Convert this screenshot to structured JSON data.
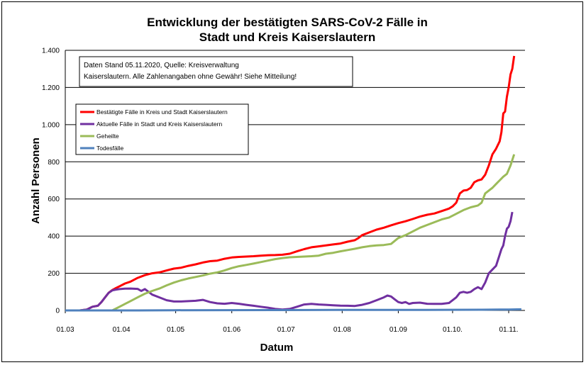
{
  "chart_data": {
    "type": "line",
    "title_line1": "Entwicklung der bestätigten SARS-CoV-2 Fälle in",
    "title_line2": "Stadt und Kreis Kaiserslautern",
    "xlabel": "Datum",
    "ylabel": "Anzahl Personen",
    "ylim": [
      0,
      1400
    ],
    "y_ticks": [
      0,
      200,
      400,
      600,
      800,
      1000,
      1200,
      1400
    ],
    "y_tick_labels": [
      "0",
      "200",
      "400",
      "600",
      "800",
      "1.000",
      "1.200",
      "1.400"
    ],
    "x_range_days": [
      0,
      254
    ],
    "x_ticks": [
      {
        "day": 0,
        "label": "01.03"
      },
      {
        "day": 31,
        "label": "01.04"
      },
      {
        "day": 61,
        "label": "01.05"
      },
      {
        "day": 92,
        "label": "01.06"
      },
      {
        "day": 122,
        "label": "01.07"
      },
      {
        "day": 153,
        "label": "01.08"
      },
      {
        "day": 184,
        "label": "01.09"
      },
      {
        "day": 214,
        "label": "01.10."
      },
      {
        "day": 245,
        "label": "01.11."
      }
    ],
    "grid": true,
    "note_line1": "Daten Stand 05.11.2020, Quelle: Kreisverwaltung",
    "note_line2": "Kaiserslautern. Alle Zahlenangaben ohne Gewähr! Siehe Mitteilung!",
    "legend_position": "top-left",
    "series": [
      {
        "name": "Bestätigte Fälle in Kreis und Stadt Kaiserslautern",
        "color": "#ff0000",
        "points": [
          [
            0,
            0
          ],
          [
            8,
            0
          ],
          [
            12,
            5
          ],
          [
            15,
            20
          ],
          [
            18,
            25
          ],
          [
            20,
            45
          ],
          [
            22,
            70
          ],
          [
            24,
            95
          ],
          [
            26,
            110
          ],
          [
            28,
            120
          ],
          [
            30,
            130
          ],
          [
            33,
            145
          ],
          [
            36,
            155
          ],
          [
            40,
            175
          ],
          [
            44,
            190
          ],
          [
            48,
            200
          ],
          [
            52,
            205
          ],
          [
            56,
            215
          ],
          [
            60,
            225
          ],
          [
            64,
            230
          ],
          [
            68,
            240
          ],
          [
            72,
            248
          ],
          [
            76,
            258
          ],
          [
            80,
            265
          ],
          [
            84,
            268
          ],
          [
            88,
            278
          ],
          [
            92,
            285
          ],
          [
            96,
            288
          ],
          [
            100,
            290
          ],
          [
            104,
            292
          ],
          [
            108,
            295
          ],
          [
            112,
            297
          ],
          [
            116,
            298
          ],
          [
            120,
            300
          ],
          [
            124,
            305
          ],
          [
            128,
            318
          ],
          [
            132,
            330
          ],
          [
            136,
            340
          ],
          [
            140,
            345
          ],
          [
            144,
            350
          ],
          [
            148,
            355
          ],
          [
            152,
            360
          ],
          [
            156,
            370
          ],
          [
            160,
            378
          ],
          [
            162,
            390
          ],
          [
            164,
            405
          ],
          [
            168,
            420
          ],
          [
            172,
            435
          ],
          [
            176,
            445
          ],
          [
            180,
            458
          ],
          [
            184,
            470
          ],
          [
            188,
            480
          ],
          [
            192,
            492
          ],
          [
            196,
            505
          ],
          [
            200,
            515
          ],
          [
            204,
            522
          ],
          [
            208,
            535
          ],
          [
            212,
            548
          ],
          [
            214,
            560
          ],
          [
            216,
            580
          ],
          [
            218,
            630
          ],
          [
            220,
            645
          ],
          [
            222,
            648
          ],
          [
            224,
            660
          ],
          [
            226,
            690
          ],
          [
            228,
            700
          ],
          [
            230,
            705
          ],
          [
            232,
            730
          ],
          [
            234,
            780
          ],
          [
            236,
            840
          ],
          [
            238,
            870
          ],
          [
            240,
            910
          ],
          [
            241,
            960
          ],
          [
            242,
            1060
          ],
          [
            243,
            1070
          ],
          [
            244,
            1150
          ],
          [
            245,
            1200
          ],
          [
            246,
            1270
          ],
          [
            247,
            1300
          ],
          [
            248,
            1370
          ]
        ]
      },
      {
        "name": "Aktuelle Fälle in Stadt und Kreis Kaiserslautern",
        "color": "#7030a0",
        "points": [
          [
            0,
            0
          ],
          [
            8,
            0
          ],
          [
            12,
            5
          ],
          [
            15,
            20
          ],
          [
            18,
            25
          ],
          [
            20,
            45
          ],
          [
            22,
            70
          ],
          [
            24,
            95
          ],
          [
            26,
            108
          ],
          [
            28,
            112
          ],
          [
            30,
            115
          ],
          [
            33,
            117
          ],
          [
            36,
            118
          ],
          [
            40,
            116
          ],
          [
            42,
            105
          ],
          [
            44,
            115
          ],
          [
            46,
            100
          ],
          [
            48,
            85
          ],
          [
            52,
            70
          ],
          [
            56,
            55
          ],
          [
            60,
            48
          ],
          [
            64,
            48
          ],
          [
            68,
            50
          ],
          [
            72,
            52
          ],
          [
            76,
            57
          ],
          [
            80,
            45
          ],
          [
            84,
            38
          ],
          [
            88,
            36
          ],
          [
            92,
            40
          ],
          [
            96,
            36
          ],
          [
            100,
            30
          ],
          [
            104,
            25
          ],
          [
            108,
            20
          ],
          [
            112,
            15
          ],
          [
            116,
            8
          ],
          [
            120,
            5
          ],
          [
            124,
            8
          ],
          [
            128,
            20
          ],
          [
            132,
            32
          ],
          [
            136,
            35
          ],
          [
            140,
            32
          ],
          [
            144,
            30
          ],
          [
            148,
            28
          ],
          [
            152,
            26
          ],
          [
            156,
            25
          ],
          [
            160,
            24
          ],
          [
            164,
            30
          ],
          [
            168,
            40
          ],
          [
            172,
            55
          ],
          [
            176,
            70
          ],
          [
            178,
            80
          ],
          [
            180,
            75
          ],
          [
            182,
            60
          ],
          [
            184,
            45
          ],
          [
            186,
            40
          ],
          [
            188,
            45
          ],
          [
            190,
            35
          ],
          [
            192,
            40
          ],
          [
            196,
            42
          ],
          [
            200,
            36
          ],
          [
            204,
            35
          ],
          [
            208,
            35
          ],
          [
            212,
            40
          ],
          [
            214,
            55
          ],
          [
            216,
            70
          ],
          [
            218,
            95
          ],
          [
            220,
            100
          ],
          [
            222,
            95
          ],
          [
            224,
            100
          ],
          [
            226,
            115
          ],
          [
            228,
            125
          ],
          [
            230,
            115
          ],
          [
            232,
            150
          ],
          [
            234,
            200
          ],
          [
            236,
            220
          ],
          [
            238,
            240
          ],
          [
            240,
            300
          ],
          [
            241,
            330
          ],
          [
            242,
            350
          ],
          [
            243,
            400
          ],
          [
            244,
            440
          ],
          [
            245,
            450
          ],
          [
            246,
            480
          ],
          [
            247,
            530
          ]
        ]
      },
      {
        "name": "Geheilte",
        "color": "#9bbb59",
        "points": [
          [
            18,
            0
          ],
          [
            26,
            0
          ],
          [
            30,
            20
          ],
          [
            33,
            35
          ],
          [
            36,
            50
          ],
          [
            40,
            70
          ],
          [
            44,
            90
          ],
          [
            48,
            105
          ],
          [
            52,
            118
          ],
          [
            56,
            135
          ],
          [
            60,
            150
          ],
          [
            64,
            162
          ],
          [
            68,
            172
          ],
          [
            72,
            180
          ],
          [
            76,
            188
          ],
          [
            80,
            198
          ],
          [
            84,
            205
          ],
          [
            88,
            215
          ],
          [
            92,
            228
          ],
          [
            96,
            238
          ],
          [
            100,
            245
          ],
          [
            104,
            252
          ],
          [
            108,
            260
          ],
          [
            112,
            268
          ],
          [
            116,
            276
          ],
          [
            120,
            282
          ],
          [
            124,
            286
          ],
          [
            128,
            288
          ],
          [
            132,
            290
          ],
          [
            136,
            292
          ],
          [
            140,
            295
          ],
          [
            144,
            305
          ],
          [
            148,
            310
          ],
          [
            152,
            318
          ],
          [
            156,
            325
          ],
          [
            160,
            332
          ],
          [
            164,
            340
          ],
          [
            168,
            346
          ],
          [
            172,
            350
          ],
          [
            176,
            352
          ],
          [
            180,
            358
          ],
          [
            184,
            390
          ],
          [
            188,
            405
          ],
          [
            192,
            425
          ],
          [
            196,
            445
          ],
          [
            200,
            460
          ],
          [
            204,
            475
          ],
          [
            208,
            490
          ],
          [
            212,
            500
          ],
          [
            214,
            510
          ],
          [
            216,
            520
          ],
          [
            220,
            540
          ],
          [
            224,
            555
          ],
          [
            228,
            565
          ],
          [
            230,
            580
          ],
          [
            232,
            630
          ],
          [
            234,
            645
          ],
          [
            236,
            660
          ],
          [
            238,
            680
          ],
          [
            240,
            700
          ],
          [
            242,
            720
          ],
          [
            244,
            735
          ],
          [
            246,
            780
          ],
          [
            248,
            840
          ]
        ]
      },
      {
        "name": "Todesfälle",
        "color": "#4f81bd",
        "points": [
          [
            0,
            0
          ],
          [
            40,
            0
          ],
          [
            60,
            1
          ],
          [
            120,
            2
          ],
          [
            150,
            3
          ],
          [
            200,
            3
          ],
          [
            230,
            4
          ],
          [
            240,
            5
          ],
          [
            245,
            5
          ],
          [
            252,
            6
          ]
        ]
      }
    ]
  }
}
